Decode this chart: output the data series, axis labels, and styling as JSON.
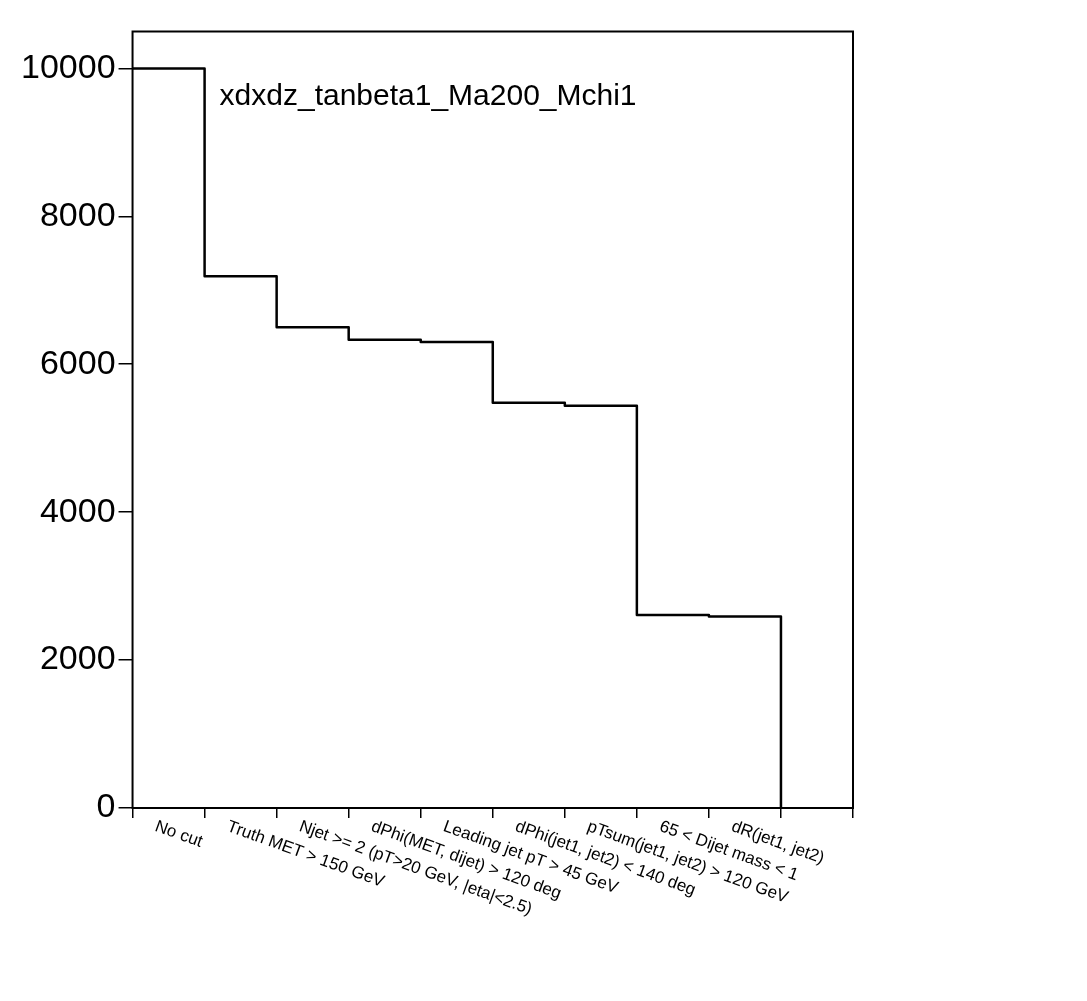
{
  "chart_data": {
    "type": "step",
    "categories": [
      "No cut",
      "Truth MET > 150 GeV",
      "Njet >= 2 (pT>20 GeV, |eta|<2.5)",
      "dPhi(MET, dijet) > 120 deg",
      "Leading jet pT > 45 GeV",
      "dPhi(jet1, jet2) < 140 deg",
      "pTsum(jet1, jet2) > 120 GeV",
      "65 < Dijet mass < 1",
      "dR(jet1, jet2)",
      null
    ],
    "values": [
      10000,
      7190,
      6500,
      6330,
      6300,
      5480,
      5440,
      2610,
      2590,
      0
    ],
    "color": "#000000",
    "ylim": [
      0,
      10500
    ],
    "yticks": [
      0,
      2000,
      4000,
      6000,
      8000,
      10000
    ],
    "annotations": [
      "xdxdz_tanbeta1_Ma200_Mchi1"
    ]
  }
}
